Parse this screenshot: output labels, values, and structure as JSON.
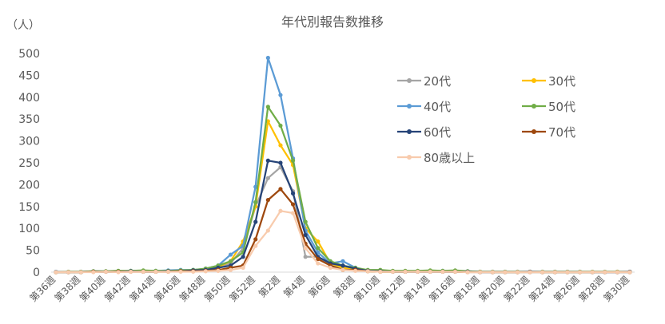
{
  "chart_data": {
    "type": "line",
    "title": "年代別報告数推移",
    "ylabel": "（人）",
    "xlabel": "",
    "ylim": [
      0,
      500
    ],
    "yticks": [
      0,
      50,
      100,
      150,
      200,
      250,
      300,
      350,
      400,
      450,
      500
    ],
    "grid": false,
    "legend_placement": "top-right",
    "x": [
      "第36週",
      "第37週",
      "第38週",
      "第39週",
      "第40週",
      "第41週",
      "第42週",
      "第43週",
      "第44週",
      "第45週",
      "第46週",
      "第47週",
      "第48週",
      "第49週",
      "第50週",
      "第51週",
      "第52週",
      "第1週",
      "第2週",
      "第3週",
      "第4週",
      "第5週",
      "第6週",
      "第7週",
      "第8週",
      "第9週",
      "第10週",
      "第11週",
      "第12週",
      "第13週",
      "第14週",
      "第15週",
      "第16週",
      "第17週",
      "第18週",
      "第19週",
      "第20週",
      "第21週",
      "第22週",
      "第23週",
      "第24週",
      "第25週",
      "第26週",
      "第27週",
      "第28週",
      "第29週",
      "第30週"
    ],
    "x_tick_labels": [
      "第36週",
      "第38週",
      "第40週",
      "第42週",
      "第44週",
      "第46週",
      "第48週",
      "第50週",
      "第52週",
      "第2週",
      "第4週",
      "第6週",
      "第8週",
      "第10週",
      "第12週",
      "第14週",
      "第16週",
      "第18週",
      "第20週",
      "第22週",
      "第24週",
      "第26週",
      "第28週",
      "第30週"
    ],
    "series": [
      {
        "name": "20代",
        "color": "#a5a5a5",
        "values": [
          0,
          0,
          0,
          1,
          1,
          1,
          2,
          1,
          1,
          2,
          2,
          3,
          5,
          10,
          20,
          55,
          150,
          215,
          240,
          185,
          35,
          35,
          15,
          10,
          5,
          2,
          1,
          1,
          1,
          1,
          1,
          1,
          1,
          1,
          0,
          0,
          0,
          0,
          0,
          0,
          0,
          0,
          0,
          0,
          0,
          0,
          0
        ]
      },
      {
        "name": "30代",
        "color": "#ffc000",
        "values": [
          0,
          0,
          0,
          1,
          2,
          1,
          2,
          2,
          1,
          2,
          3,
          4,
          5,
          12,
          25,
          70,
          150,
          345,
          290,
          245,
          100,
          70,
          20,
          10,
          5,
          2,
          1,
          1,
          1,
          2,
          3,
          2,
          3,
          1,
          1,
          0,
          0,
          0,
          1,
          0,
          0,
          0,
          0,
          0,
          0,
          1,
          0
        ]
      },
      {
        "name": "40代",
        "color": "#5b9bd5",
        "values": [
          1,
          0,
          1,
          2,
          2,
          2,
          3,
          3,
          3,
          4,
          5,
          5,
          8,
          15,
          40,
          60,
          195,
          490,
          405,
          260,
          95,
          45,
          20,
          25,
          10,
          3,
          2,
          1,
          1,
          2,
          2,
          3,
          2,
          2,
          1,
          1,
          1,
          1,
          1,
          1,
          1,
          1,
          1,
          0,
          0,
          0,
          0
        ]
      },
      {
        "name": "50代",
        "color": "#70ad47",
        "values": [
          0,
          1,
          1,
          2,
          2,
          3,
          3,
          4,
          3,
          3,
          4,
          5,
          8,
          15,
          25,
          45,
          160,
          378,
          335,
          255,
          115,
          55,
          25,
          15,
          10,
          5,
          5,
          3,
          3,
          3,
          4,
          3,
          4,
          2,
          1,
          1,
          1,
          1,
          1,
          1,
          1,
          1,
          1,
          1,
          1,
          1,
          1
        ]
      },
      {
        "name": "60代",
        "color": "#264478",
        "values": [
          0,
          0,
          0,
          1,
          1,
          1,
          2,
          1,
          1,
          2,
          2,
          4,
          5,
          10,
          15,
          35,
          115,
          255,
          250,
          180,
          85,
          35,
          20,
          15,
          8,
          3,
          2,
          1,
          1,
          1,
          1,
          1,
          1,
          1,
          0,
          0,
          0,
          0,
          1,
          0,
          0,
          0,
          0,
          0,
          0,
          0,
          1
        ]
      },
      {
        "name": "70代",
        "color": "#9e480e",
        "values": [
          0,
          0,
          0,
          1,
          1,
          1,
          1,
          1,
          1,
          1,
          2,
          2,
          3,
          5,
          10,
          15,
          75,
          165,
          190,
          155,
          65,
          30,
          15,
          5,
          5,
          2,
          1,
          1,
          1,
          1,
          1,
          1,
          1,
          0,
          0,
          0,
          0,
          0,
          0,
          0,
          0,
          0,
          0,
          0,
          0,
          0,
          0
        ]
      },
      {
        "name": "80歳以上",
        "color": "#f8cbad",
        "values": [
          0,
          0,
          0,
          0,
          1,
          0,
          1,
          1,
          1,
          1,
          1,
          1,
          2,
          3,
          5,
          10,
          60,
          95,
          140,
          135,
          55,
          20,
          10,
          5,
          3,
          2,
          1,
          1,
          1,
          1,
          1,
          1,
          1,
          0,
          0,
          0,
          0,
          0,
          0,
          0,
          0,
          0,
          0,
          0,
          0,
          0,
          0
        ]
      }
    ]
  }
}
